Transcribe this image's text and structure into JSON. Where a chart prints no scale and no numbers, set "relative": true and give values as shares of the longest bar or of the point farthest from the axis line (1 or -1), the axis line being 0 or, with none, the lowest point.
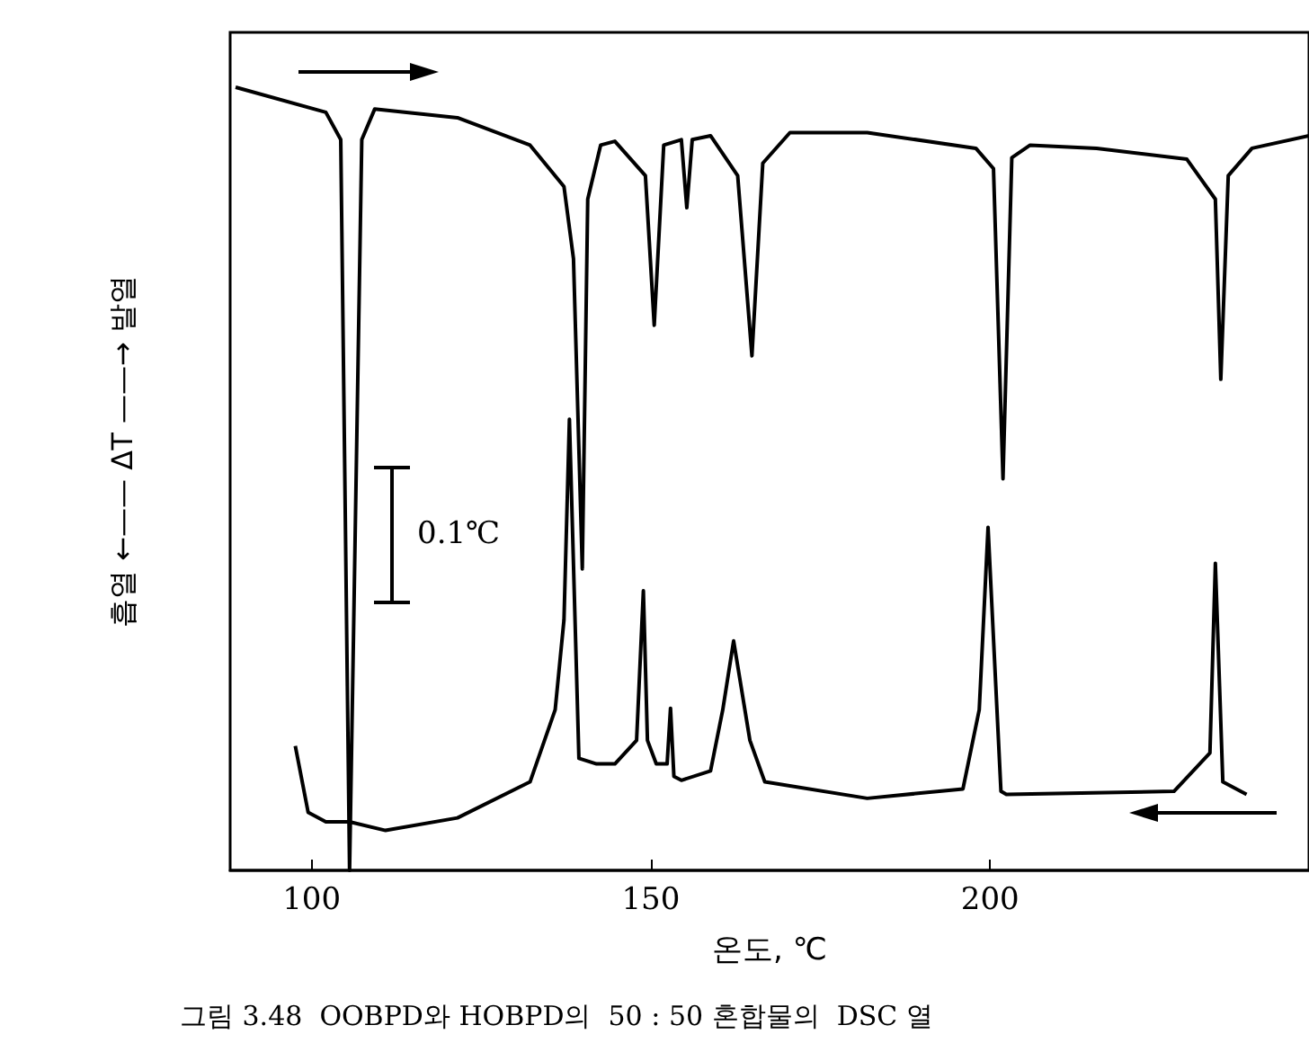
{
  "chart_data": {
    "type": "line",
    "relative": true,
    "xlabel": "온도, ℃",
    "ylabel": "흡열 ←—— ΔT ——→ 발열",
    "xlim": [
      88,
      247
    ],
    "xticks": [
      100,
      150,
      200
    ],
    "grid": false,
    "marker": "none",
    "line_style": "solid",
    "annotations": [
      "0.1℃",
      "그림 3.48  OOBPD와 HOBPD의  50 : 50 혼합물의  DSC 열"
    ],
    "series": [
      {
        "color": "#000000",
        "x": [
          88.8,
          102.1,
          104.3,
          105.6,
          107.4,
          109.3,
          121.5,
          132.2,
          137.2,
          138.6,
          139.9,
          140.7,
          142.6,
          144.7,
          149.2,
          150.5,
          151.9,
          154.5,
          155.3,
          156.1,
          158.8,
          162.8,
          164.9,
          166.5,
          170.5,
          181.9,
          197.9,
          200.5,
          201.9,
          203.2,
          205.9,
          215.7,
          229,
          233.2,
          234,
          235.1,
          238.6,
          247
        ],
        "values": [
          1,
          0.968,
          0.933,
          0,
          0.933,
          0.972,
          0.961,
          0.926,
          0.873,
          0.781,
          0.385,
          0.857,
          0.926,
          0.931,
          0.887,
          0.696,
          0.926,
          0.933,
          0.846,
          0.933,
          0.938,
          0.887,
          0.657,
          0.903,
          0.942,
          0.942,
          0.922,
          0.896,
          0.5,
          0.91,
          0.926,
          0.922,
          0.908,
          0.857,
          0.627,
          0.887,
          0.922,
          0.938
        ]
      },
      {
        "color": "#000000",
        "x": [
          97.6,
          99.5,
          102.1,
          105.6,
          110.9,
          121.5,
          132.2,
          135.9,
          137.2,
          138,
          139.4,
          142,
          144.7,
          147.9,
          148.9,
          149.5,
          150.8,
          152.4,
          152.9,
          153.4,
          154.5,
          158.8,
          160.6,
          162.2,
          164.6,
          166.8,
          181.9,
          196,
          198.4,
          199.7,
          201.6,
          202.4,
          227.1,
          232.4,
          233.2,
          234.3,
          237.8
        ],
        "values": [
          0.159,
          0.074,
          0.062,
          0.062,
          0.051,
          0.067,
          0.113,
          0.205,
          0.32,
          0.576,
          0.143,
          0.136,
          0.136,
          0.166,
          0.357,
          0.166,
          0.136,
          0.136,
          0.207,
          0.12,
          0.115,
          0.127,
          0.205,
          0.293,
          0.166,
          0.113,
          0.092,
          0.104,
          0.205,
          0.438,
          0.101,
          0.097,
          0.101,
          0.15,
          0.392,
          0.113,
          0.097
        ]
      }
    ]
  }
}
